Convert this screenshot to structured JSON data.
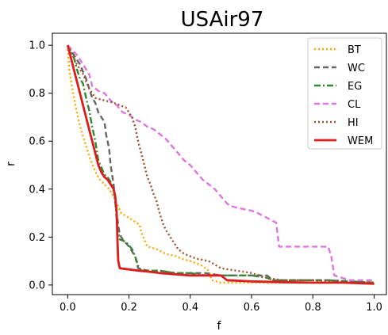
{
  "chart_data": {
    "type": "line",
    "title": "USAir97",
    "xlabel": "f",
    "ylabel": "r",
    "xlim": [
      -0.05,
      1.04
    ],
    "ylim": [
      -0.04,
      1.05
    ],
    "xticks": [
      "0.0",
      "0.2",
      "0.4",
      "0.6",
      "0.8",
      "1.0"
    ],
    "yticks": [
      "0.0",
      "0.2",
      "0.4",
      "0.6",
      "0.8",
      "1.0"
    ],
    "grid": false,
    "legend_position": "top-right",
    "series": [
      {
        "name": "BT",
        "color": "#ffa500",
        "dash": "dotted",
        "width": 2.4,
        "points": [
          [
            0.0,
            1.0
          ],
          [
            0.005,
            0.9
          ],
          [
            0.015,
            0.82
          ],
          [
            0.025,
            0.75
          ],
          [
            0.035,
            0.69
          ],
          [
            0.045,
            0.64
          ],
          [
            0.055,
            0.6
          ],
          [
            0.065,
            0.56
          ],
          [
            0.075,
            0.52
          ],
          [
            0.085,
            0.49
          ],
          [
            0.095,
            0.46
          ],
          [
            0.105,
            0.44
          ],
          [
            0.12,
            0.42
          ],
          [
            0.135,
            0.4
          ],
          [
            0.15,
            0.37
          ],
          [
            0.16,
            0.34
          ],
          [
            0.175,
            0.3
          ],
          [
            0.2,
            0.28
          ],
          [
            0.225,
            0.26
          ],
          [
            0.235,
            0.25
          ],
          [
            0.24,
            0.22
          ],
          [
            0.26,
            0.16
          ],
          [
            0.29,
            0.15
          ],
          [
            0.32,
            0.13
          ],
          [
            0.355,
            0.12
          ],
          [
            0.37,
            0.11
          ],
          [
            0.4,
            0.1
          ],
          [
            0.44,
            0.08
          ],
          [
            0.46,
            0.06
          ],
          [
            0.47,
            0.02
          ],
          [
            0.5,
            0.01
          ],
          [
            0.6,
            0.01
          ],
          [
            0.7,
            0.01
          ],
          [
            0.8,
            0.01
          ],
          [
            0.9,
            0.01
          ],
          [
            1.0,
            0.01
          ]
        ]
      },
      {
        "name": "WC",
        "color": "#666666",
        "dash": "dashed",
        "width": 2.4,
        "points": [
          [
            0.0,
            1.0
          ],
          [
            0.02,
            0.96
          ],
          [
            0.04,
            0.92
          ],
          [
            0.06,
            0.86
          ],
          [
            0.07,
            0.82
          ],
          [
            0.08,
            0.78
          ],
          [
            0.09,
            0.76
          ],
          [
            0.1,
            0.72
          ],
          [
            0.11,
            0.7
          ],
          [
            0.12,
            0.68
          ],
          [
            0.125,
            0.63
          ],
          [
            0.135,
            0.57
          ],
          [
            0.14,
            0.5
          ],
          [
            0.15,
            0.42
          ],
          [
            0.155,
            0.35
          ],
          [
            0.16,
            0.3
          ],
          [
            0.165,
            0.25
          ],
          [
            0.17,
            0.21
          ],
          [
            0.18,
            0.19
          ],
          [
            0.2,
            0.16
          ],
          [
            0.22,
            0.12
          ],
          [
            0.23,
            0.07
          ],
          [
            0.26,
            0.06
          ],
          [
            0.3,
            0.06
          ],
          [
            0.35,
            0.05
          ],
          [
            0.4,
            0.05
          ],
          [
            0.45,
            0.05
          ],
          [
            0.5,
            0.04
          ],
          [
            0.55,
            0.04
          ],
          [
            0.6,
            0.04
          ],
          [
            0.65,
            0.04
          ],
          [
            0.67,
            0.02
          ],
          [
            0.75,
            0.02
          ],
          [
            0.85,
            0.02
          ],
          [
            1.0,
            0.01
          ]
        ]
      },
      {
        "name": "EG",
        "color": "#338833",
        "dash": "dashdot",
        "width": 2.4,
        "points": [
          [
            0.0,
            1.0
          ],
          [
            0.02,
            0.95
          ],
          [
            0.03,
            0.9
          ],
          [
            0.04,
            0.86
          ],
          [
            0.05,
            0.84
          ],
          [
            0.06,
            0.78
          ],
          [
            0.07,
            0.73
          ],
          [
            0.08,
            0.66
          ],
          [
            0.09,
            0.6
          ],
          [
            0.1,
            0.52
          ],
          [
            0.11,
            0.49
          ],
          [
            0.12,
            0.46
          ],
          [
            0.13,
            0.45
          ],
          [
            0.14,
            0.43
          ],
          [
            0.15,
            0.4
          ],
          [
            0.155,
            0.35
          ],
          [
            0.16,
            0.27
          ],
          [
            0.165,
            0.22
          ],
          [
            0.17,
            0.19
          ],
          [
            0.19,
            0.18
          ],
          [
            0.21,
            0.15
          ],
          [
            0.22,
            0.12
          ],
          [
            0.23,
            0.08
          ],
          [
            0.24,
            0.06
          ],
          [
            0.3,
            0.06
          ],
          [
            0.35,
            0.05
          ],
          [
            0.4,
            0.05
          ],
          [
            0.45,
            0.04
          ],
          [
            0.5,
            0.04
          ],
          [
            0.6,
            0.04
          ],
          [
            0.65,
            0.03
          ],
          [
            0.67,
            0.02
          ],
          [
            0.75,
            0.02
          ],
          [
            0.85,
            0.02
          ],
          [
            1.0,
            0.01
          ]
        ]
      },
      {
        "name": "CL",
        "color": "#dd77dd",
        "dash": "dashed",
        "width": 2.4,
        "points": [
          [
            0.0,
            1.0
          ],
          [
            0.03,
            0.96
          ],
          [
            0.05,
            0.92
          ],
          [
            0.07,
            0.88
          ],
          [
            0.08,
            0.83
          ],
          [
            0.1,
            0.81
          ],
          [
            0.12,
            0.8
          ],
          [
            0.14,
            0.77
          ],
          [
            0.16,
            0.75
          ],
          [
            0.18,
            0.72
          ],
          [
            0.2,
            0.71
          ],
          [
            0.22,
            0.69
          ],
          [
            0.24,
            0.68
          ],
          [
            0.26,
            0.66
          ],
          [
            0.28,
            0.65
          ],
          [
            0.3,
            0.63
          ],
          [
            0.32,
            0.61
          ],
          [
            0.34,
            0.58
          ],
          [
            0.36,
            0.55
          ],
          [
            0.38,
            0.52
          ],
          [
            0.4,
            0.5
          ],
          [
            0.42,
            0.47
          ],
          [
            0.44,
            0.44
          ],
          [
            0.46,
            0.42
          ],
          [
            0.48,
            0.4
          ],
          [
            0.5,
            0.37
          ],
          [
            0.52,
            0.34
          ],
          [
            0.53,
            0.33
          ],
          [
            0.56,
            0.32
          ],
          [
            0.6,
            0.31
          ],
          [
            0.62,
            0.3
          ],
          [
            0.65,
            0.28
          ],
          [
            0.68,
            0.26
          ],
          [
            0.69,
            0.16
          ],
          [
            0.75,
            0.16
          ],
          [
            0.85,
            0.16
          ],
          [
            0.86,
            0.12
          ],
          [
            0.87,
            0.04
          ],
          [
            0.92,
            0.02
          ],
          [
            1.0,
            0.02
          ]
        ]
      },
      {
        "name": "HI",
        "color": "#a0522d",
        "dash": "dotted",
        "width": 2.4,
        "points": [
          [
            0.0,
            1.0
          ],
          [
            0.03,
            0.92
          ],
          [
            0.05,
            0.88
          ],
          [
            0.07,
            0.82
          ],
          [
            0.09,
            0.78
          ],
          [
            0.12,
            0.77
          ],
          [
            0.15,
            0.76
          ],
          [
            0.17,
            0.75
          ],
          [
            0.19,
            0.74
          ],
          [
            0.21,
            0.7
          ],
          [
            0.22,
            0.66
          ],
          [
            0.23,
            0.6
          ],
          [
            0.24,
            0.55
          ],
          [
            0.25,
            0.5
          ],
          [
            0.26,
            0.45
          ],
          [
            0.27,
            0.42
          ],
          [
            0.28,
            0.38
          ],
          [
            0.29,
            0.35
          ],
          [
            0.3,
            0.3
          ],
          [
            0.31,
            0.26
          ],
          [
            0.32,
            0.23
          ],
          [
            0.34,
            0.19
          ],
          [
            0.36,
            0.15
          ],
          [
            0.38,
            0.13
          ],
          [
            0.4,
            0.12
          ],
          [
            0.42,
            0.11
          ],
          [
            0.46,
            0.1
          ],
          [
            0.5,
            0.07
          ],
          [
            0.55,
            0.06
          ],
          [
            0.6,
            0.05
          ],
          [
            0.65,
            0.03
          ],
          [
            0.7,
            0.02
          ],
          [
            0.8,
            0.02
          ],
          [
            0.9,
            0.01
          ],
          [
            1.0,
            0.01
          ]
        ]
      },
      {
        "name": "WEM",
        "color": "#dd1c1c",
        "dash": "solid",
        "width": 2.8,
        "points": [
          [
            0.0,
            1.0
          ],
          [
            0.01,
            0.95
          ],
          [
            0.02,
            0.9
          ],
          [
            0.03,
            0.85
          ],
          [
            0.04,
            0.8
          ],
          [
            0.05,
            0.75
          ],
          [
            0.06,
            0.7
          ],
          [
            0.07,
            0.65
          ],
          [
            0.08,
            0.6
          ],
          [
            0.09,
            0.55
          ],
          [
            0.1,
            0.5
          ],
          [
            0.11,
            0.47
          ],
          [
            0.12,
            0.45
          ],
          [
            0.13,
            0.44
          ],
          [
            0.14,
            0.42
          ],
          [
            0.15,
            0.4
          ],
          [
            0.155,
            0.37
          ],
          [
            0.16,
            0.3
          ],
          [
            0.162,
            0.2
          ],
          [
            0.165,
            0.1
          ],
          [
            0.17,
            0.07
          ],
          [
            0.2,
            0.065
          ],
          [
            0.23,
            0.06
          ],
          [
            0.27,
            0.055
          ],
          [
            0.3,
            0.05
          ],
          [
            0.35,
            0.045
          ],
          [
            0.4,
            0.04
          ],
          [
            0.45,
            0.04
          ],
          [
            0.5,
            0.04
          ],
          [
            0.52,
            0.02
          ],
          [
            0.6,
            0.015
          ],
          [
            0.7,
            0.012
          ],
          [
            0.8,
            0.01
          ],
          [
            0.9,
            0.01
          ],
          [
            1.0,
            0.005
          ]
        ]
      }
    ]
  }
}
